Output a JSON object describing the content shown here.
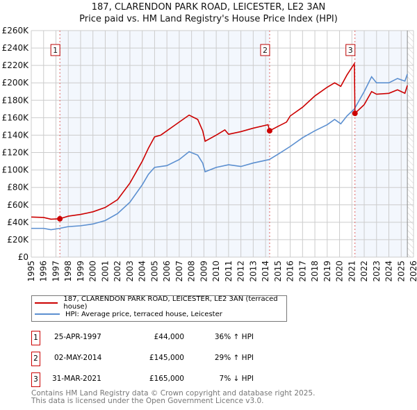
{
  "title_line1": "187, CLARENDON PARK ROAD, LEICESTER, LE2 3AN",
  "title_line2": "Price paid vs. HM Land Registry's House Price Index (HPI)",
  "chart_data": {
    "type": "line",
    "ylim": [
      0,
      260000
    ],
    "xlim": [
      1995,
      2026
    ],
    "y_ticks": [
      0,
      20000,
      40000,
      60000,
      80000,
      100000,
      120000,
      140000,
      160000,
      180000,
      200000,
      220000,
      240000,
      260000
    ],
    "y_tick_labels": [
      "£0",
      "£20K",
      "£40K",
      "£60K",
      "£80K",
      "£100K",
      "£120K",
      "£140K",
      "£160K",
      "£180K",
      "£200K",
      "£220K",
      "£240K",
      "£260K"
    ],
    "x_tick_labels": [
      "1995",
      "1996",
      "1997",
      "1998",
      "1999",
      "2000",
      "2001",
      "2002",
      "2003",
      "2004",
      "2005",
      "2006",
      "2007",
      "2008",
      "2009",
      "2010",
      "2011",
      "2012",
      "2013",
      "2014",
      "2015",
      "2016",
      "2017",
      "2018",
      "2019",
      "2020",
      "2021",
      "2022",
      "2023",
      "2024",
      "2025",
      "2026"
    ],
    "grid": true,
    "series": [
      {
        "name": "187, CLARENDON PARK ROAD, LEICESTER, LE2 3AN (terraced house)",
        "color": "#cc0000",
        "points": [
          [
            1995,
            46000
          ],
          [
            1996,
            45500
          ],
          [
            1996.6,
            43500
          ],
          [
            1997.3,
            44000
          ],
          [
            1998,
            47000
          ],
          [
            1999,
            49000
          ],
          [
            2000,
            52000
          ],
          [
            2001,
            57000
          ],
          [
            2002,
            66000
          ],
          [
            2003,
            85000
          ],
          [
            2004,
            110000
          ],
          [
            2004.5,
            125000
          ],
          [
            2005,
            138000
          ],
          [
            2005.5,
            140000
          ],
          [
            2006,
            145000
          ],
          [
            2007,
            155000
          ],
          [
            2007.8,
            163000
          ],
          [
            2008.5,
            158000
          ],
          [
            2008.9,
            145000
          ],
          [
            2009.1,
            133000
          ],
          [
            2010,
            140000
          ],
          [
            2010.7,
            146000
          ],
          [
            2011,
            141000
          ],
          [
            2012,
            144000
          ],
          [
            2013,
            148000
          ],
          [
            2014.2,
            152000
          ],
          [
            2014.33,
            145000
          ],
          [
            2015,
            150000
          ],
          [
            2015.7,
            155000
          ],
          [
            2016,
            162000
          ],
          [
            2017,
            172000
          ],
          [
            2018,
            185000
          ],
          [
            2019,
            195000
          ],
          [
            2019.6,
            200000
          ],
          [
            2020.1,
            196000
          ],
          [
            2020.6,
            209000
          ],
          [
            2021.2,
            222000
          ],
          [
            2021.25,
            165000
          ],
          [
            2022,
            175000
          ],
          [
            2022.6,
            190000
          ],
          [
            2023,
            187000
          ],
          [
            2024,
            188000
          ],
          [
            2024.7,
            192000
          ],
          [
            2025.3,
            188000
          ],
          [
            2025.5,
            197000
          ]
        ]
      },
      {
        "name": "HPI: Average price, terraced house, Leicester",
        "color": "#5b8fd0",
        "points": [
          [
            1995,
            33000
          ],
          [
            1996,
            33000
          ],
          [
            1996.6,
            31500
          ],
          [
            1997.3,
            33000
          ],
          [
            1998,
            35000
          ],
          [
            1999,
            36000
          ],
          [
            2000,
            38000
          ],
          [
            2001,
            42000
          ],
          [
            2002,
            50000
          ],
          [
            2003,
            63000
          ],
          [
            2004,
            83000
          ],
          [
            2004.5,
            95000
          ],
          [
            2005,
            103000
          ],
          [
            2006,
            105000
          ],
          [
            2007,
            112000
          ],
          [
            2007.8,
            121000
          ],
          [
            2008.5,
            117000
          ],
          [
            2008.9,
            108000
          ],
          [
            2009.1,
            98000
          ],
          [
            2010,
            103000
          ],
          [
            2011,
            106000
          ],
          [
            2012,
            104000
          ],
          [
            2013,
            108000
          ],
          [
            2014.3,
            112000
          ],
          [
            2015,
            118000
          ],
          [
            2016,
            127000
          ],
          [
            2017,
            137000
          ],
          [
            2018,
            145000
          ],
          [
            2019,
            152000
          ],
          [
            2019.6,
            158000
          ],
          [
            2020.1,
            153000
          ],
          [
            2020.6,
            162000
          ],
          [
            2021.2,
            170000
          ],
          [
            2022,
            190000
          ],
          [
            2022.6,
            207000
          ],
          [
            2023,
            200000
          ],
          [
            2024,
            200000
          ],
          [
            2024.7,
            205000
          ],
          [
            2025.3,
            202000
          ],
          [
            2025.5,
            210000
          ]
        ]
      }
    ],
    "sales": [
      {
        "label": "1",
        "x": 1997.32,
        "y": 44000
      },
      {
        "label": "2",
        "x": 2014.33,
        "y": 145000
      },
      {
        "label": "3",
        "x": 2021.25,
        "y": 165000
      }
    ]
  },
  "legend": {
    "red": "187, CLARENDON PARK ROAD, LEICESTER, LE2 3AN (terraced house)",
    "blue": "HPI: Average price, terraced house, Leicester"
  },
  "sales_table": [
    {
      "num": "1",
      "date": "25-APR-1997",
      "price": "£44,000",
      "hpi": "36% ↑ HPI"
    },
    {
      "num": "2",
      "date": "02-MAY-2014",
      "price": "£145,000",
      "hpi": "29% ↑ HPI"
    },
    {
      "num": "3",
      "date": "31-MAR-2021",
      "price": "£165,000",
      "hpi": "7% ↓ HPI"
    }
  ],
  "footer_line1": "Contains HM Land Registry data © Crown copyright and database right 2025.",
  "footer_line2": "This data is licensed under the Open Government Licence v3.0."
}
